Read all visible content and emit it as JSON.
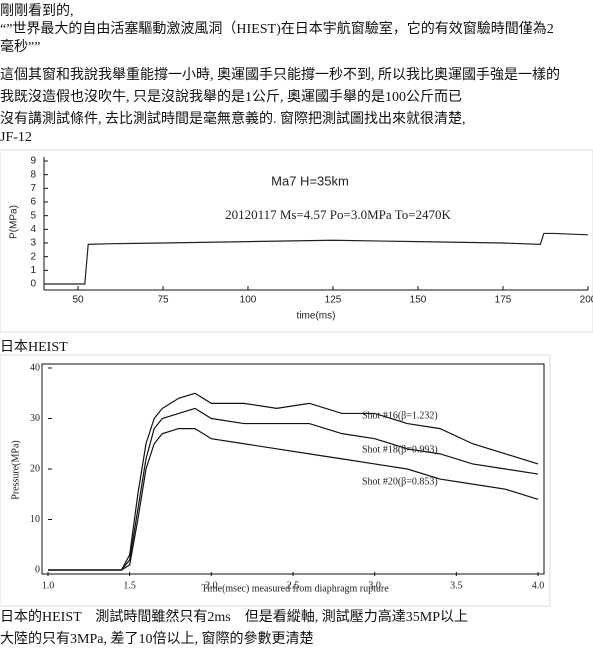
{
  "post": {
    "lines": [
      "剛剛看到的,",
      "“”世界最大的自由活塞驅動激波風洞（HIEST)在日本宇航窗驗室，它的有效窗驗時間僅為2",
      "毫秒””",
      "這個其窗和我說我舉重能撐一小時, 奧運國手只能撐一秒不到, 所以我比奧運國手強是一樣的",
      "我既沒造假也沒吹牛, 只是沒說我舉的是1公斤, 奧運國手舉的是100公斤而已",
      "沒有講測試條件, 去比測試時間是毫無意義的. 窗際把測試圖找出來就很清楚,",
      "JF-12",
      "日本HEIST",
      "日本的HEIST　測試時間雖然只有2ms　但是看縱軸, 測試壓力高達35MP以上",
      "大陸的只有3MPa, 差了10倍以上, 窗際的參數更清楚"
    ]
  },
  "chart_data": [
    {
      "type": "line",
      "xlabel": "time(ms)",
      "ylabel": "P(MPa)",
      "annotations": [
        "Ma7  H=35km",
        "20120117   Ms=4.57   Po=3.0MPa   To=2470K"
      ],
      "x": [
        40,
        52,
        53,
        60,
        75,
        100,
        125,
        150,
        175,
        186,
        187,
        190,
        200
      ],
      "series": [
        {
          "color": "#222222",
          "values": [
            0,
            0,
            2.9,
            2.95,
            3.0,
            3.1,
            3.2,
            3.1,
            3.0,
            2.9,
            3.7,
            3.7,
            3.6
          ]
        }
      ],
      "xlim": [
        40,
        200
      ],
      "ylim": [
        0,
        9
      ],
      "xticks": [
        50,
        75,
        100,
        125,
        150,
        175,
        200
      ],
      "yticks": [
        0,
        1,
        2,
        3,
        4,
        5,
        6,
        7,
        8,
        9
      ]
    },
    {
      "type": "line",
      "xlabel": "Time(msec) measured from diaphragm rupture",
      "ylabel": "Pressure(MPa)",
      "x": [
        1.0,
        1.4,
        1.45,
        1.5,
        1.55,
        1.6,
        1.65,
        1.7,
        1.8,
        1.9,
        2.0,
        2.2,
        2.4,
        2.6,
        2.8,
        3.0,
        3.2,
        3.4,
        3.6,
        3.8,
        4.0
      ],
      "series": [
        {
          "name": "Shot #16(β=1.232)",
          "color": "#111111",
          "values": [
            0,
            0,
            0,
            3,
            15,
            25,
            30,
            32,
            34,
            35,
            33,
            33,
            32,
            33,
            31,
            31,
            29,
            28,
            25,
            23,
            21
          ]
        },
        {
          "name": "Shot #18(β=0.993)",
          "color": "#111111",
          "values": [
            0,
            0,
            0,
            2,
            12,
            22,
            28,
            30,
            31,
            32,
            30,
            29,
            29,
            29,
            27,
            26,
            24,
            23,
            21,
            20,
            19
          ]
        },
        {
          "name": "Shot #20(β=0.853)",
          "color": "#111111",
          "values": [
            0,
            0,
            0,
            1,
            10,
            20,
            25,
            27,
            28,
            28,
            26,
            25,
            24,
            23,
            22,
            21,
            20,
            18,
            17,
            16,
            14
          ]
        }
      ],
      "xlim": [
        1.0,
        4.0
      ],
      "ylim": [
        0,
        40
      ],
      "xticks": [
        {
          "value": 1.0,
          "label": "1.0"
        },
        {
          "value": 1.5,
          "label": "1.5"
        },
        {
          "value": 2.0,
          "label": "2.0"
        },
        {
          "value": 2.5,
          "label": "2.5"
        },
        {
          "value": 3.0,
          "label": "3.0"
        },
        {
          "value": 3.5,
          "label": "3.5"
        },
        {
          "value": 4.0,
          "label": "4.0"
        }
      ],
      "yticks": [
        0,
        10,
        20,
        30,
        40
      ]
    }
  ]
}
